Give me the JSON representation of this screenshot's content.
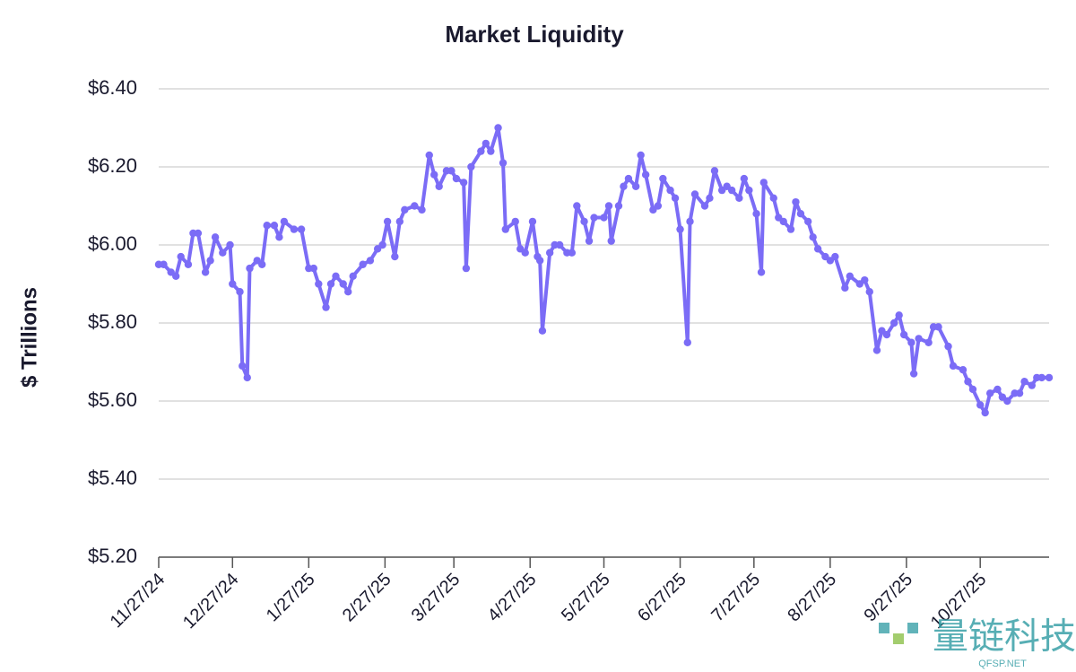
{
  "chart_data": {
    "type": "line",
    "title": "Market Liquidity",
    "ylabel": "$ Trillions",
    "watermark": "量链科技",
    "watermark_sub": "QFSP.NET",
    "grid": true,
    "ylim": [
      5.2,
      6.4
    ],
    "yticks": [
      {
        "value": 5.2,
        "label": "$5.20"
      },
      {
        "value": 5.4,
        "label": "$5.40"
      },
      {
        "value": 5.6,
        "label": "$5.60"
      },
      {
        "value": 5.8,
        "label": "$5.80"
      },
      {
        "value": 6.0,
        "label": "$6.00"
      },
      {
        "value": 6.2,
        "label": "$6.20"
      },
      {
        "value": 6.4,
        "label": "$6.40"
      }
    ],
    "xlim": [
      "11/27/24",
      "11/24/25"
    ],
    "xticks": [
      "11/27/24",
      "12/27/24",
      "1/27/25",
      "2/27/25",
      "3/27/25",
      "4/27/25",
      "5/27/25",
      "6/27/25",
      "7/27/25",
      "8/27/25",
      "9/27/25",
      "10/27/25"
    ],
    "x": [
      "11/27/24",
      "11/29/24",
      "12/2/24",
      "12/4/24",
      "12/6/24",
      "12/9/24",
      "12/11/24",
      "12/13/24",
      "12/16/24",
      "12/18/24",
      "12/20/24",
      "12/23/24",
      "12/26/24",
      "12/27/24",
      "12/30/24",
      "12/31/24",
      "1/2/25",
      "1/3/25",
      "1/6/25",
      "1/8/25",
      "1/10/25",
      "1/13/25",
      "1/15/25",
      "1/17/25",
      "1/21/25",
      "1/24/25",
      "1/27/25",
      "1/29/25",
      "1/31/25",
      "2/3/25",
      "2/5/25",
      "2/7/25",
      "2/10/25",
      "2/12/25",
      "2/14/25",
      "2/18/25",
      "2/21/25",
      "2/24/25",
      "2/26/25",
      "2/28/25",
      "3/3/25",
      "3/5/25",
      "3/7/25",
      "3/11/25",
      "3/14/25",
      "3/17/25",
      "3/19/25",
      "3/21/25",
      "3/24/25",
      "3/26/25",
      "3/28/25",
      "3/31/25",
      "4/1/25",
      "4/3/25",
      "4/7/25",
      "4/9/25",
      "4/11/25",
      "4/14/25",
      "4/16/25",
      "4/17/25",
      "4/21/25",
      "4/23/25",
      "4/25/25",
      "4/28/25",
      "4/30/25",
      "5/1/25",
      "5/2/25",
      "5/5/25",
      "5/7/25",
      "5/9/25",
      "5/12/25",
      "5/14/25",
      "5/16/25",
      "5/19/25",
      "5/21/25",
      "5/23/25",
      "5/27/25",
      "5/29/25",
      "5/30/25",
      "6/2/25",
      "6/4/25",
      "6/6/25",
      "6/9/25",
      "6/11/25",
      "6/13/25",
      "6/16/25",
      "6/18/25",
      "6/20/25",
      "6/23/25",
      "6/25/25",
      "6/27/25",
      "6/30/25",
      "7/1/25",
      "7/3/25",
      "7/7/25",
      "7/9/25",
      "7/11/25",
      "7/14/25",
      "7/16/25",
      "7/18/25",
      "7/21/25",
      "7/23/25",
      "7/25/25",
      "7/28/25",
      "7/30/25",
      "7/31/25",
      "8/4/25",
      "8/6/25",
      "8/8/25",
      "8/11/25",
      "8/13/25",
      "8/15/25",
      "8/18/25",
      "8/20/25",
      "8/22/25",
      "8/25/25",
      "8/27/25",
      "8/29/25",
      "9/2/25",
      "9/4/25",
      "9/8/25",
      "9/10/25",
      "9/12/25",
      "9/15/25",
      "9/17/25",
      "9/19/25",
      "9/22/25",
      "9/24/25",
      "9/26/25",
      "9/29/25",
      "9/30/25",
      "10/2/25",
      "10/6/25",
      "10/8/25",
      "10/10/25",
      "10/14/25",
      "10/16/25",
      "10/20/25",
      "10/22/25",
      "10/24/25",
      "10/27/25",
      "10/29/25",
      "10/31/25",
      "11/3/25",
      "11/5/25",
      "11/7/25",
      "11/10/25",
      "11/12/25",
      "11/14/25",
      "11/17/25",
      "11/19/25",
      "11/21/25",
      "11/24/25"
    ],
    "series": [
      {
        "name": "Market Liquidity",
        "color": "#7b6cf6",
        "values": [
          5.95,
          5.95,
          5.93,
          5.92,
          5.97,
          5.95,
          6.03,
          6.03,
          5.93,
          5.96,
          6.02,
          5.98,
          6.0,
          5.9,
          5.88,
          5.69,
          5.66,
          5.94,
          5.96,
          5.95,
          6.05,
          6.05,
          6.02,
          6.06,
          6.04,
          6.04,
          5.94,
          5.94,
          5.9,
          5.84,
          5.9,
          5.92,
          5.9,
          5.88,
          5.92,
          5.95,
          5.96,
          5.99,
          6.0,
          6.06,
          5.97,
          6.06,
          6.09,
          6.1,
          6.09,
          6.23,
          6.18,
          6.15,
          6.19,
          6.19,
          6.17,
          6.16,
          5.94,
          6.2,
          6.24,
          6.26,
          6.24,
          6.3,
          6.21,
          6.04,
          6.06,
          5.99,
          5.98,
          6.06,
          5.97,
          5.96,
          5.78,
          5.98,
          6.0,
          6.0,
          5.98,
          5.98,
          6.1,
          6.06,
          6.01,
          6.07,
          6.07,
          6.1,
          6.01,
          6.1,
          6.15,
          6.17,
          6.15,
          6.23,
          6.18,
          6.09,
          6.1,
          6.17,
          6.14,
          6.12,
          6.04,
          5.75,
          6.06,
          6.13,
          6.1,
          6.12,
          6.19,
          6.14,
          6.15,
          6.14,
          6.12,
          6.17,
          6.14,
          6.08,
          5.93,
          6.16,
          6.12,
          6.07,
          6.06,
          6.04,
          6.11,
          6.08,
          6.06,
          6.02,
          5.99,
          5.97,
          5.96,
          5.97,
          5.89,
          5.92,
          5.9,
          5.91,
          5.88,
          5.73,
          5.78,
          5.77,
          5.8,
          5.82,
          5.77,
          5.75,
          5.67,
          5.76,
          5.75,
          5.79,
          5.79,
          5.74,
          5.69,
          5.68,
          5.65,
          5.63,
          5.59,
          5.57,
          5.62,
          5.63,
          5.61,
          5.6,
          5.62,
          5.62,
          5.65,
          5.64,
          5.66,
          5.66,
          5.66
        ]
      }
    ]
  }
}
